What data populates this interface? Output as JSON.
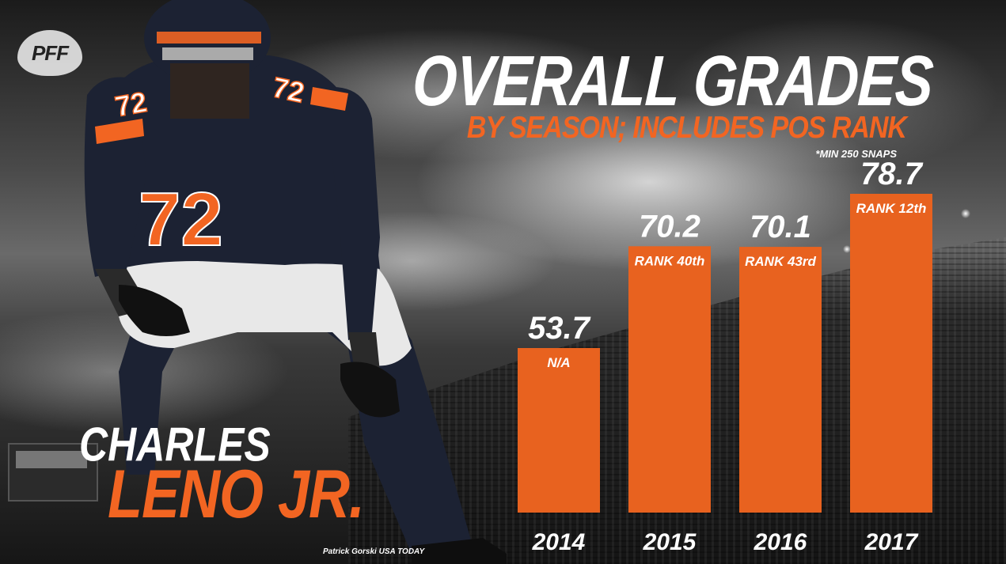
{
  "logo": {
    "text": "PFF"
  },
  "title": "OVERALL GRADES",
  "subtitle": "BY SEASON; INCLUDES POS RANK",
  "note": "*MIN 250 SNAPS",
  "player": {
    "first_name": "CHARLES",
    "last_name": "LENO JR.",
    "jersey_number": "72"
  },
  "photo_credit": "Patrick Gorski USA TODAY",
  "colors": {
    "accent": "#f26522",
    "bar": "#e8621f",
    "text": "#ffffff",
    "jersey": "#1c2233"
  },
  "chart_data": {
    "type": "bar",
    "categories": [
      "2014",
      "2015",
      "2016",
      "2017"
    ],
    "values": [
      53.7,
      70.2,
      70.1,
      78.7
    ],
    "value_labels": [
      "53.7",
      "70.2",
      "70.1",
      "78.7"
    ],
    "rank_labels": [
      "N/A",
      "RANK 40th",
      "RANK 43rd",
      "RANK 12th"
    ],
    "title": "OVERALL GRADES",
    "subtitle": "BY SEASON; INCLUDES POS RANK",
    "xlabel": "",
    "ylabel": "",
    "grid": false,
    "legend": "none"
  }
}
